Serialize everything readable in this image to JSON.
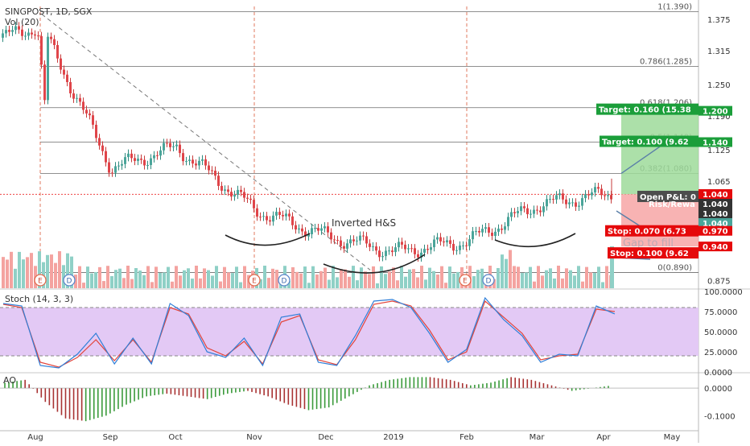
{
  "header": {
    "symbol_line": "SINGPOST, 1D, SGX",
    "vol_label": "Vol (20)"
  },
  "colors": {
    "up": "#4aa59a",
    "down": "#e0454a",
    "target_green": "#1b9e3a",
    "stop_red": "#e5090b",
    "stoch_k": "#2f7fd8",
    "stoch_d": "#e2453c",
    "stoch_band": "#e3c9f5",
    "fib_line": "#6b6b6b",
    "price_tag_bg": "#333333"
  },
  "chart_data": [
    {
      "type": "candlestick",
      "title": "SINGPOST, 1D, SGX",
      "x_labels": [
        "Aug",
        "Sep",
        "Oct",
        "Nov",
        "Dec",
        "2019",
        "Feb",
        "Mar",
        "Apr",
        "May"
      ],
      "y_ticks": [
        "1.375",
        "1.315",
        "1.250",
        "1.190",
        "1.125",
        "1.065",
        "1.000",
        "0.940",
        "0.875"
      ],
      "ylim": [
        0.86,
        1.4
      ],
      "close_path_months": [
        "Aug",
        "Sep",
        "Oct",
        "Nov",
        "Dec",
        "2019",
        "Feb",
        "Mar",
        "Apr"
      ],
      "close_path": [
        1.38,
        1.09,
        1.13,
        1.01,
        0.96,
        0.93,
        0.95,
        1.02,
        1.04
      ],
      "fib_levels": [
        {
          "label": "1(1.390)",
          "value": 1.39
        },
        {
          "label": "0.786(1.285)",
          "value": 1.285
        },
        {
          "label": "0.618(1.206)",
          "value": 1.206
        },
        {
          "label": "0.5(1.140)",
          "value": 1.14
        },
        {
          "label": "0.382(1.080)",
          "value": 1.08
        },
        {
          "label": "0(0.890)",
          "value": 0.89
        }
      ],
      "annotations": [
        "Inverted H&S"
      ],
      "event_markers": [
        {
          "label": "E",
          "month": "Aug"
        },
        {
          "label": "D",
          "month": "Aug"
        },
        {
          "label": "E",
          "month": "Nov"
        },
        {
          "label": "D",
          "month": "Nov"
        },
        {
          "label": "E",
          "month": "Feb"
        },
        {
          "label": "D",
          "month": "Feb"
        }
      ],
      "price_tags": [
        {
          "text": "Target: 0.160 (15.38",
          "value": 1.2,
          "kind": "target"
        },
        {
          "text": "Target: 0.100 (9.62",
          "value": 1.14,
          "kind": "target"
        },
        {
          "text": "Open P&L: 0",
          "value": 1.04,
          "kind": "info"
        },
        {
          "text": "Risk/Rewa",
          "value": 1.04,
          "kind": "info"
        },
        {
          "text": "Stop: 0.070 (6.73",
          "value": 0.97,
          "kind": "stop"
        },
        {
          "text": "Stop: 0.100 (9.62",
          "value": 0.94,
          "kind": "stop"
        }
      ],
      "axis_tags": [
        "1.200",
        "1.140",
        "1.040",
        "1.040",
        "1.040",
        "1.040",
        "0.970",
        "0.940"
      ],
      "ghost_text": "Gap to fill"
    },
    {
      "type": "line",
      "title": "Stoch (14, 3, 3)",
      "y_ticks": [
        "100.0000",
        "75.0000",
        "50.0000",
        "25.0000",
        "0.0000"
      ],
      "ylim": [
        0,
        100
      ],
      "band": [
        20,
        80
      ],
      "series": [
        {
          "values": [
            85,
            82,
            8,
            5,
            22,
            48,
            10,
            42,
            10,
            85,
            70,
            25,
            18,
            42,
            8,
            68,
            72,
            12,
            8,
            45,
            88,
            90,
            80,
            48,
            12,
            28,
            92,
            65,
            45,
            12,
            22,
            20,
            82,
            72
          ]
        },
        {
          "values": [
            84,
            80,
            12,
            6,
            18,
            40,
            14,
            40,
            12,
            80,
            72,
            30,
            20,
            38,
            10,
            62,
            70,
            15,
            9,
            40,
            84,
            88,
            82,
            52,
            15,
            25,
            88,
            68,
            48,
            15,
            20,
            22,
            78,
            75
          ]
        }
      ]
    },
    {
      "type": "bar",
      "title": "AO",
      "y_ticks": [
        "0.0000",
        "-0.1000"
      ],
      "ylim": [
        -0.14,
        0.05
      ],
      "series": [
        {
          "values": [
            0.02,
            0.03,
            -0.05,
            -0.11,
            -0.12,
            -0.1,
            -0.06,
            -0.03,
            -0.02,
            -0.03,
            -0.04,
            -0.02,
            -0.01,
            -0.03,
            -0.06,
            -0.08,
            -0.07,
            -0.03,
            0.01,
            0.03,
            0.04,
            0.04,
            0.03,
            0.01,
            0.02,
            0.04,
            0.03,
            0.01,
            -0.01,
            0.0,
            0.01
          ]
        }
      ]
    }
  ]
}
